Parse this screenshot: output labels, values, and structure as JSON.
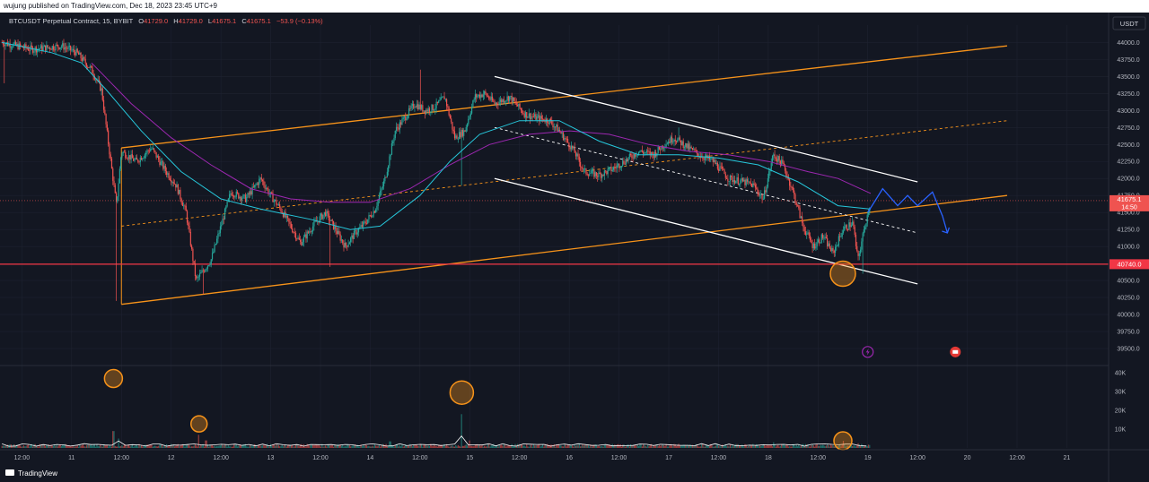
{
  "header": {
    "publisher": "wujung published on TradingView.com, Dec 18, 2023 23:45 UTC+9"
  },
  "legend": {
    "symbol": "BTCUSDT Perpetual Contract, 15, BYBIT",
    "open_label": "O",
    "open": "41729.0",
    "high_label": "H",
    "high": "41729.0",
    "low_label": "L",
    "low": "41675.1",
    "close_label": "C",
    "close": "41675.1",
    "change": "−53.9 (−0.13%)"
  },
  "currency_button": "USDT",
  "price_tag": {
    "value": "41675.1",
    "countdown": "14:50",
    "price": 41675.1
  },
  "support_tag": {
    "value": "40740.0",
    "price": 40740
  },
  "footer": {
    "logo_text": "TradingView"
  },
  "colors": {
    "background": "#131722",
    "grid": "#1e2230",
    "up": "#26a69a",
    "down": "#ef5350",
    "channel_orange": "#f7931a",
    "channel_white": "#ffffff",
    "ma_teal": "#26c6da",
    "ma_purple": "#9c27b0",
    "support_red": "#f23645",
    "forecast_blue": "#2962ff"
  },
  "chart_data": {
    "type": "candlestick",
    "symbol": "BTCUSDT Perpetual Contract",
    "interval": "15",
    "exchange": "BYBIT",
    "price_ticks": [
      "44000.0",
      "43750.0",
      "43500.0",
      "43250.0",
      "43000.0",
      "42750.0",
      "42500.0",
      "42250.0",
      "42000.0",
      "41750.0",
      "41500.0",
      "41250.0",
      "41000.0",
      "40750.0",
      "40500.0",
      "40250.0",
      "40000.0",
      "39750.0",
      "39500.0"
    ],
    "price_tick_values": [
      44000,
      43750,
      43500,
      43250,
      43000,
      42750,
      42500,
      42250,
      42000,
      41750,
      41500,
      41250,
      41000,
      40750,
      40500,
      40250,
      40000,
      39750,
      39500
    ],
    "ylim": [
      39250,
      44150
    ],
    "volume_ticks": [
      "40K",
      "30K",
      "20K",
      "10K"
    ],
    "volume_tick_values": [
      40000,
      30000,
      20000,
      10000
    ],
    "volume_ylim": [
      0,
      42000
    ],
    "time_labels": [
      "12:00",
      "11",
      "12:00",
      "12",
      "12:00",
      "13",
      "12:00",
      "14",
      "12:00",
      "15",
      "12:00",
      "16",
      "12:00",
      "17",
      "12:00",
      "18",
      "12:00",
      "19",
      "12:00",
      "20",
      "12:00",
      "21"
    ],
    "time_label_days": [
      10.5,
      11,
      11.5,
      12,
      12.5,
      13,
      13.5,
      14,
      14.5,
      15,
      15.5,
      16,
      16.5,
      17,
      17.5,
      18,
      18.5,
      19,
      19.5,
      20,
      20.5,
      21
    ],
    "xlim": [
      10.28,
      21.42
    ],
    "price_path": [
      [
        10.3,
        44000
      ],
      [
        10.6,
        43900
      ],
      [
        10.9,
        43950
      ],
      [
        11.05,
        43850
      ],
      [
        11.2,
        43600
      ],
      [
        11.3,
        43300
      ],
      [
        11.45,
        41600
      ],
      [
        11.5,
        42400
      ],
      [
        11.65,
        42250
      ],
      [
        11.8,
        42450
      ],
      [
        11.95,
        42100
      ],
      [
        12.05,
        41900
      ],
      [
        12.15,
        41500
      ],
      [
        12.25,
        40500
      ],
      [
        12.4,
        40800
      ],
      [
        12.5,
        41300
      ],
      [
        12.6,
        41800
      ],
      [
        12.75,
        41700
      ],
      [
        12.9,
        42000
      ],
      [
        13.0,
        41750
      ],
      [
        13.1,
        41550
      ],
      [
        13.2,
        41300
      ],
      [
        13.3,
        41050
      ],
      [
        13.45,
        41350
      ],
      [
        13.55,
        41500
      ],
      [
        13.65,
        41250
      ],
      [
        13.75,
        41000
      ],
      [
        13.85,
        41200
      ],
      [
        13.95,
        41350
      ],
      [
        14.05,
        41550
      ],
      [
        14.15,
        42000
      ],
      [
        14.25,
        42700
      ],
      [
        14.35,
        42900
      ],
      [
        14.45,
        43100
      ],
      [
        14.55,
        43000
      ],
      [
        14.65,
        43050
      ],
      [
        14.75,
        43200
      ],
      [
        14.85,
        42600
      ],
      [
        14.95,
        42700
      ],
      [
        15.05,
        43200
      ],
      [
        15.15,
        43250
      ],
      [
        15.25,
        43100
      ],
      [
        15.4,
        43200
      ],
      [
        15.55,
        42950
      ],
      [
        15.65,
        42900
      ],
      [
        15.8,
        42850
      ],
      [
        15.9,
        42700
      ],
      [
        16.05,
        42400
      ],
      [
        16.15,
        42100
      ],
      [
        16.3,
        42050
      ],
      [
        16.45,
        42150
      ],
      [
        16.55,
        42250
      ],
      [
        16.7,
        42400
      ],
      [
        16.85,
        42350
      ],
      [
        16.95,
        42500
      ],
      [
        17.05,
        42600
      ],
      [
        17.15,
        42500
      ],
      [
        17.3,
        42350
      ],
      [
        17.45,
        42250
      ],
      [
        17.6,
        42000
      ],
      [
        17.75,
        41950
      ],
      [
        17.85,
        41900
      ],
      [
        17.95,
        41700
      ],
      [
        18.05,
        42350
      ],
      [
        18.15,
        42200
      ],
      [
        18.25,
        41800
      ],
      [
        18.35,
        41300
      ],
      [
        18.45,
        41000
      ],
      [
        18.55,
        41150
      ],
      [
        18.65,
        40900
      ],
      [
        18.75,
        41250
      ],
      [
        18.85,
        41350
      ],
      [
        18.9,
        40800
      ],
      [
        18.97,
        41300
      ],
      [
        19.03,
        41675
      ]
    ],
    "spikes": [
      [
        10.32,
        43400
      ],
      [
        11.45,
        40200
      ],
      [
        12.32,
        40300
      ],
      [
        13.6,
        40700
      ],
      [
        14.5,
        43600
      ],
      [
        14.92,
        41900
      ],
      [
        17.1,
        42750
      ],
      [
        18.95,
        40600
      ]
    ],
    "ma_teal": [
      [
        10.3,
        44000
      ],
      [
        10.8,
        43850
      ],
      [
        11.1,
        43700
      ],
      [
        11.35,
        43300
      ],
      [
        11.7,
        42700
      ],
      [
        12.1,
        42100
      ],
      [
        12.5,
        41700
      ],
      [
        12.9,
        41550
      ],
      [
        13.4,
        41400
      ],
      [
        13.8,
        41250
      ],
      [
        14.1,
        41300
      ],
      [
        14.5,
        41750
      ],
      [
        14.8,
        42250
      ],
      [
        15.1,
        42650
      ],
      [
        15.5,
        42850
      ],
      [
        15.9,
        42850
      ],
      [
        16.3,
        42550
      ],
      [
        16.7,
        42350
      ],
      [
        17.1,
        42350
      ],
      [
        17.5,
        42300
      ],
      [
        17.9,
        42200
      ],
      [
        18.3,
        41950
      ],
      [
        18.7,
        41600
      ],
      [
        19.03,
        41550
      ]
    ],
    "ma_purple": [
      [
        11.2,
        43700
      ],
      [
        11.6,
        43100
      ],
      [
        12.0,
        42600
      ],
      [
        12.4,
        42200
      ],
      [
        12.8,
        41850
      ],
      [
        13.2,
        41700
      ],
      [
        13.6,
        41650
      ],
      [
        14.0,
        41650
      ],
      [
        14.4,
        41850
      ],
      [
        14.8,
        42200
      ],
      [
        15.2,
        42500
      ],
      [
        15.6,
        42650
      ],
      [
        16.0,
        42700
      ],
      [
        16.4,
        42650
      ],
      [
        16.8,
        42500
      ],
      [
        17.2,
        42400
      ],
      [
        17.6,
        42350
      ],
      [
        18.0,
        42250
      ],
      [
        18.4,
        42100
      ],
      [
        18.7,
        42000
      ],
      [
        19.03,
        41780
      ]
    ],
    "channel_orange": {
      "upper": [
        [
          11.5,
          42450
        ],
        [
          20.4,
          43950
        ]
      ],
      "lower": [
        [
          11.5,
          40150
        ],
        [
          20.4,
          41750
        ]
      ],
      "mid": [
        [
          11.5,
          41300
        ],
        [
          20.4,
          42850
        ]
      ]
    },
    "channel_white": {
      "upper": [
        [
          15.25,
          43500
        ],
        [
          19.5,
          41950
        ]
      ],
      "lower": [
        [
          15.25,
          42000
        ],
        [
          19.5,
          40450
        ]
      ],
      "mid": [
        [
          15.25,
          42750
        ],
        [
          19.5,
          41200
        ]
      ]
    },
    "forecast": [
      [
        19.0,
        41500
      ],
      [
        19.15,
        41850
      ],
      [
        19.3,
        41600
      ],
      [
        19.4,
        41750
      ],
      [
        19.5,
        41600
      ],
      [
        19.65,
        41800
      ],
      [
        19.75,
        41450
      ],
      [
        19.8,
        41200
      ]
    ],
    "support_level": 40740,
    "current_price": 41675.1,
    "markers_price": [
      [
        18.75,
        40600
      ]
    ],
    "markers_volume": [
      [
        11.42,
        37000
      ],
      [
        12.28,
        12800
      ],
      [
        14.92,
        29500
      ],
      [
        18.75,
        3800
      ]
    ],
    "event_icons": [
      [
        19.0,
        39450,
        "lightning-icon"
      ],
      [
        19.88,
        39450,
        "flag-icon"
      ]
    ],
    "volume_bars": [
      [
        11.42,
        9000
      ],
      [
        11.47,
        5000
      ],
      [
        12.28,
        7000
      ],
      [
        12.35,
        4000
      ],
      [
        14.2,
        3500
      ],
      [
        14.92,
        18000
      ],
      [
        15.0,
        4000
      ],
      [
        16.1,
        2500
      ],
      [
        17.1,
        2200
      ],
      [
        18.05,
        3000
      ],
      [
        18.75,
        3800
      ],
      [
        18.9,
        2500
      ]
    ]
  }
}
